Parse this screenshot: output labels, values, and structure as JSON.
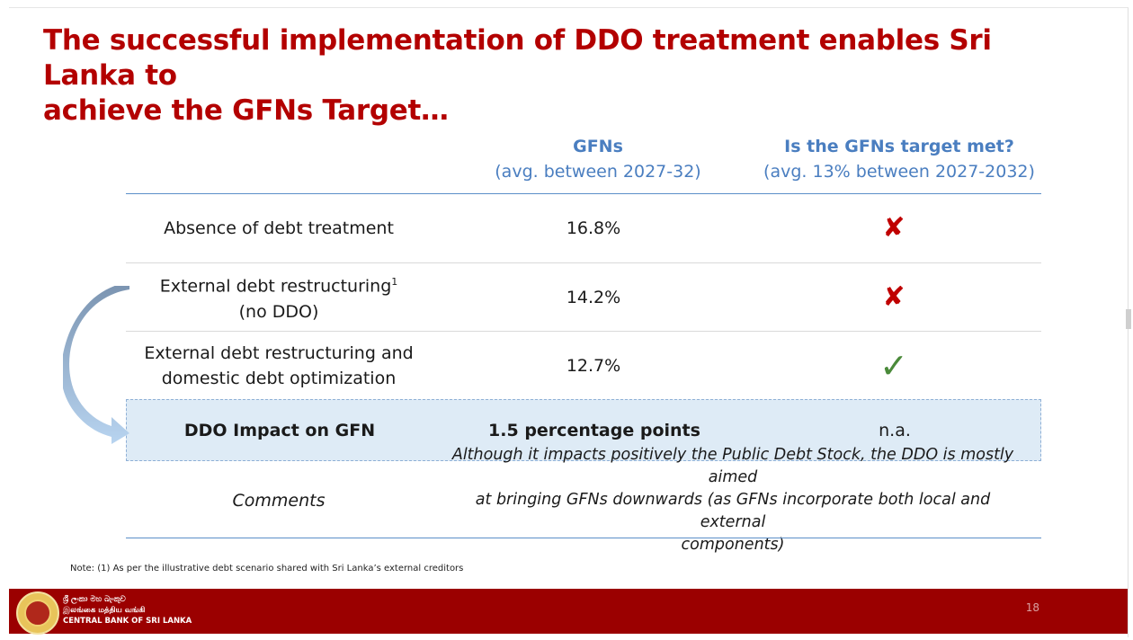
{
  "title": {
    "line1": "The successful implementation of DDO treatment enables Sri Lanka to",
    "line2": "achieve the GFNs Target…"
  },
  "columns": {
    "gfns": {
      "heading": "GFNs",
      "sub": "(avg. between 2027-32)"
    },
    "target": {
      "heading": "Is the GFNs target met?",
      "sub": "(avg. 13% between 2027-2032)"
    }
  },
  "rows": [
    {
      "label": "Absence of debt treatment",
      "gfn": "16.8%",
      "met": "✘",
      "met_icon": "cross-icon"
    },
    {
      "label_line1": "External debt restructuring",
      "label_sup": "1",
      "label_line2": "(no DDO)",
      "gfn": "14.2%",
      "met": "✘",
      "met_icon": "cross-icon"
    },
    {
      "label_line1": "External debt restructuring and",
      "label_line2": "domestic debt optimization",
      "gfn": "12.7%",
      "met": "✓",
      "met_icon": "check-icon"
    }
  ],
  "ddo_row": {
    "label": "DDO Impact on GFN",
    "gfn": "1.5 percentage points",
    "met": "n.a."
  },
  "comments": {
    "label": "Comments",
    "line1": "Although it impacts positively the Public Debt Stock, the DDO is mostly aimed",
    "line2": "at bringing GFNs downwards (as GFNs incorporate both local and external",
    "line3": "components)"
  },
  "note": "Note: (1) As per the illustrative debt scenario shared with Sri Lanka’s external creditors",
  "footer": {
    "bank_sinhala": "ශ්‍රී ලංකා මහ බැංකුව",
    "bank_tamil": "இலங்கை மத்திய வங்கி",
    "bank_english": "CENTRAL BANK OF SRI LANKA",
    "page_number": "18"
  },
  "colors": {
    "title": "#b30000",
    "heading": "#4a7ec0",
    "footer": "#9b0000",
    "ddo_fill": "#deebf6"
  }
}
